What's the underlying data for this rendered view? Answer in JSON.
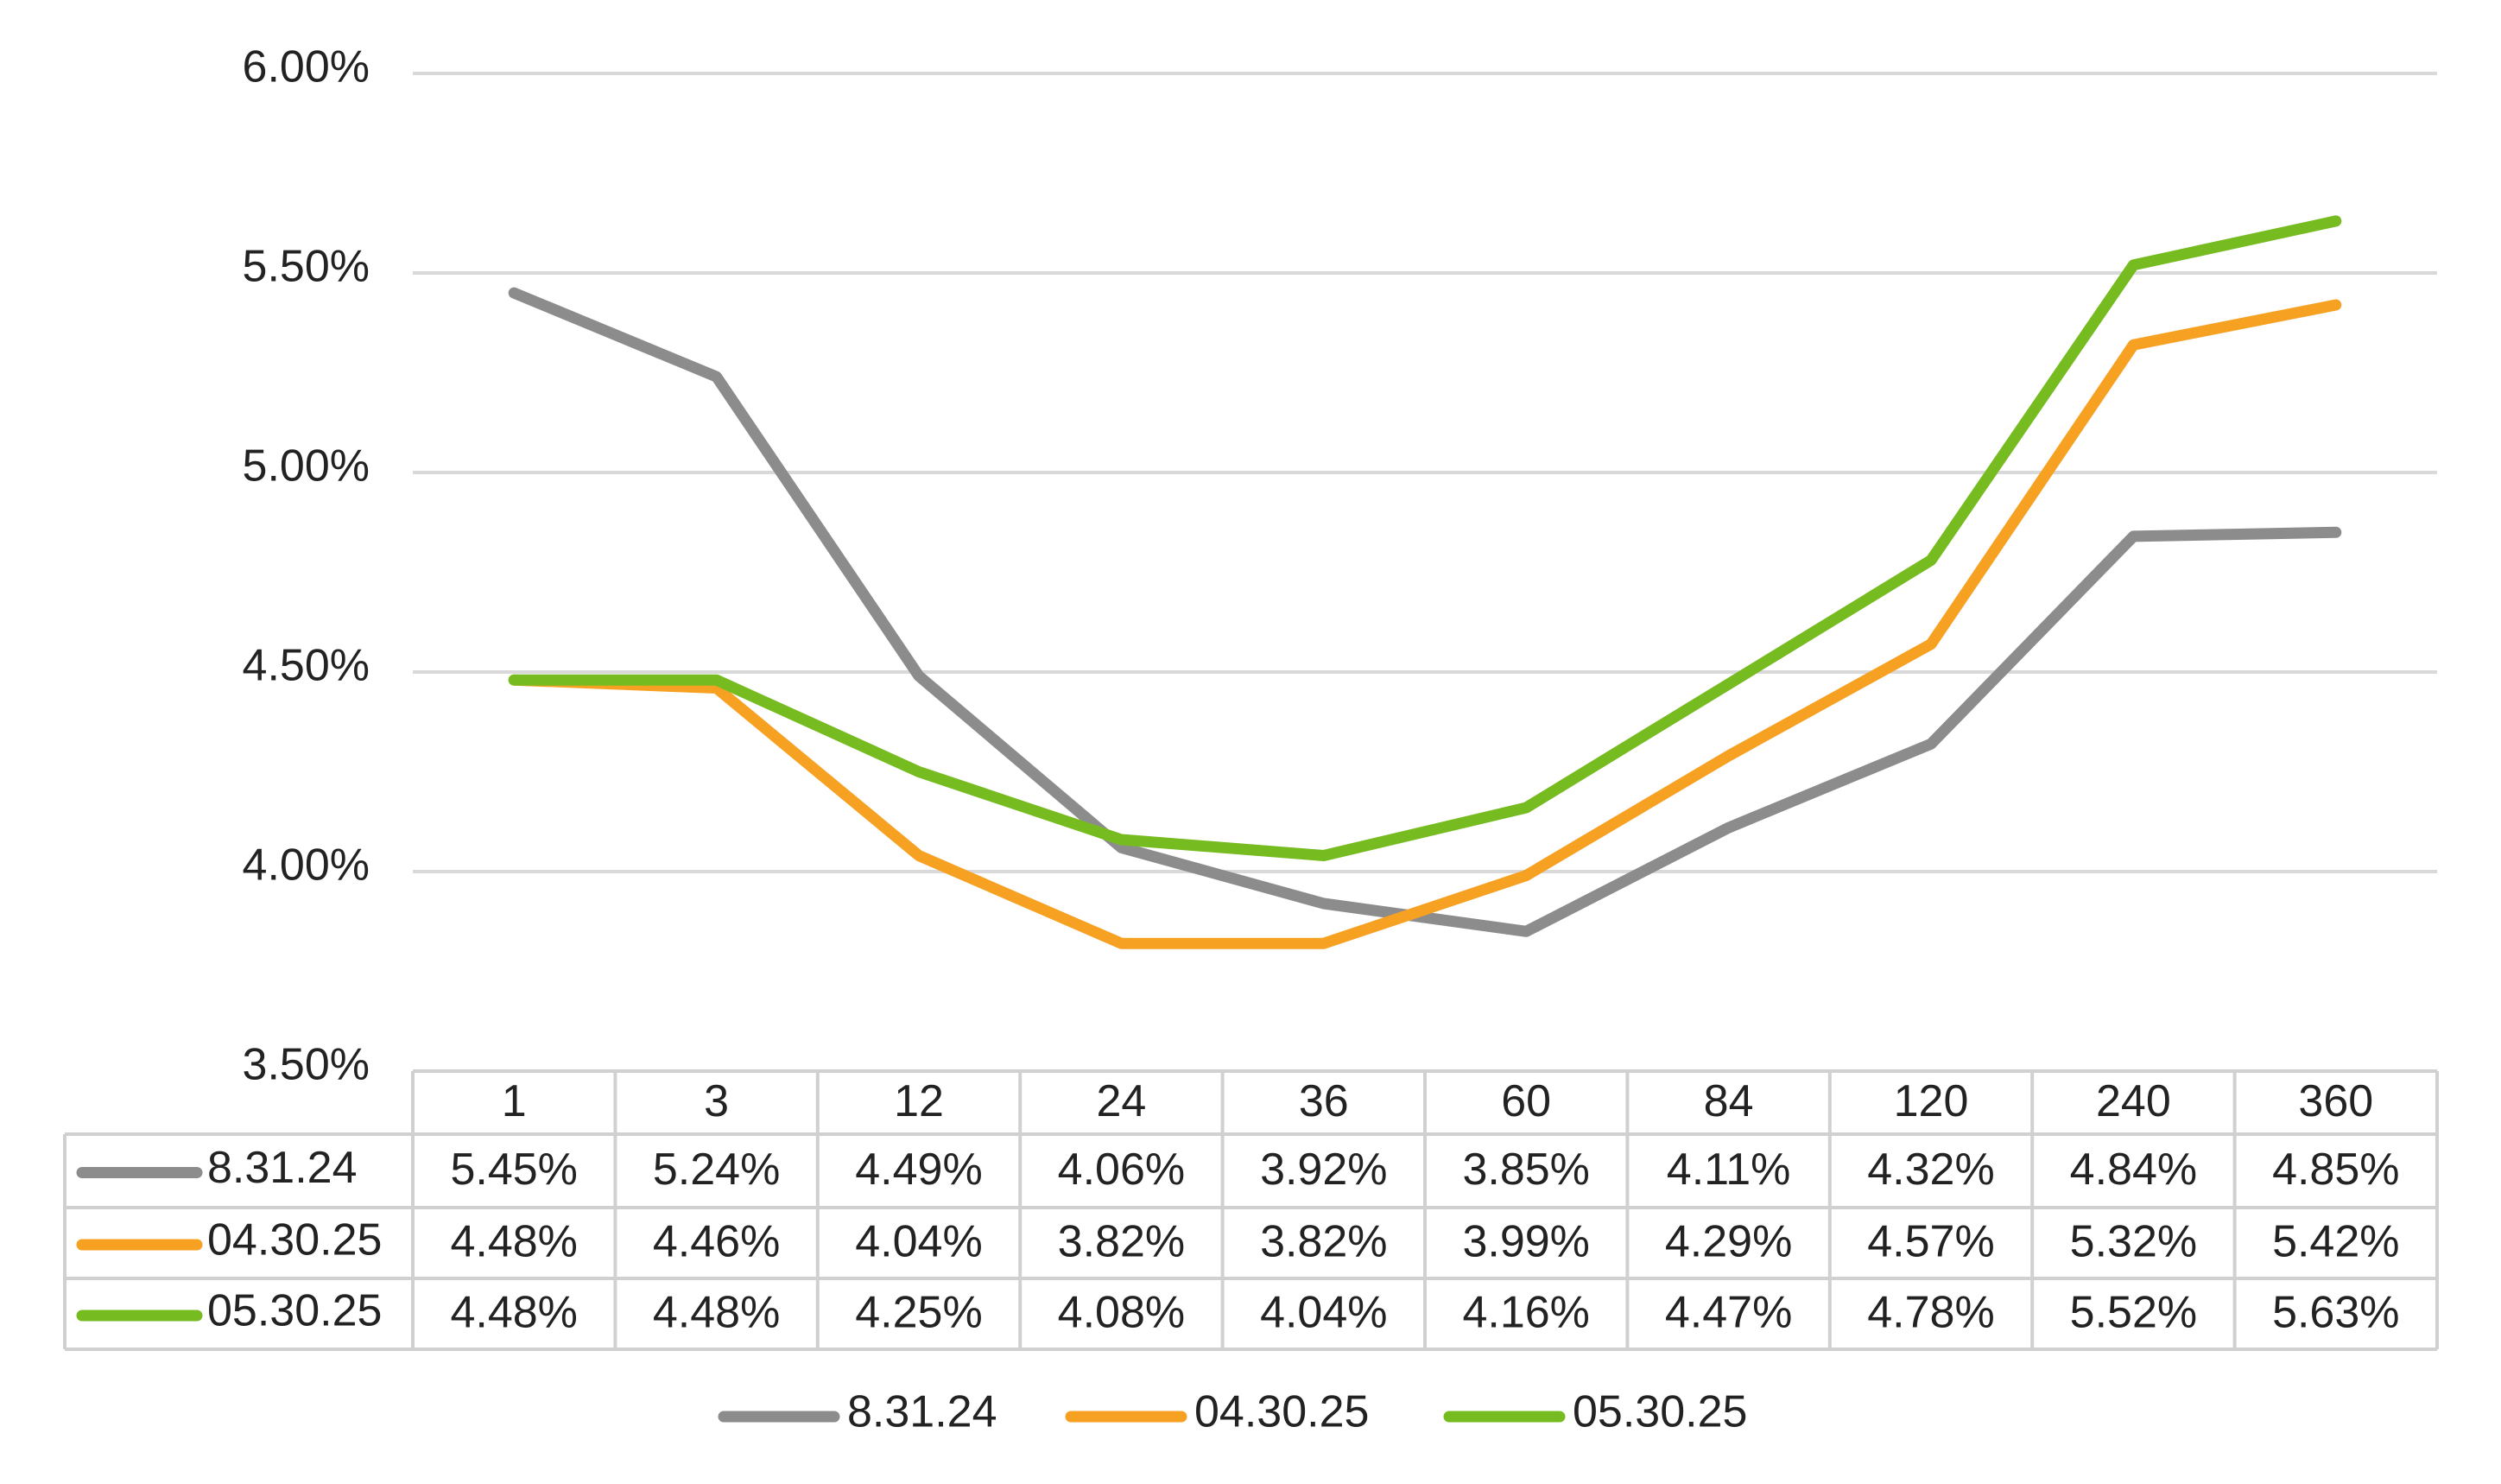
{
  "chart_data": {
    "type": "line",
    "title": "",
    "xlabel": "",
    "ylabel": "",
    "categories": [
      "1",
      "3",
      "12",
      "24",
      "36",
      "60",
      "84",
      "120",
      "240",
      "360"
    ],
    "y_ticks": [
      "3.50%",
      "4.00%",
      "4.50%",
      "5.00%",
      "5.50%",
      "6.00%"
    ],
    "ylim": [
      3.5,
      6.0
    ],
    "grid": true,
    "legend_position": "bottom",
    "data_table": true,
    "series": [
      {
        "name": "8.31.24",
        "color": "#8C8C8C",
        "values": [
          5.45,
          5.24,
          4.49,
          4.06,
          3.92,
          3.85,
          4.11,
          4.32,
          4.84,
          4.85
        ],
        "labels": [
          "5.45%",
          "5.24%",
          "4.49%",
          "4.06%",
          "3.92%",
          "3.85%",
          "4.11%",
          "4.32%",
          "4.84%",
          "4.85%"
        ]
      },
      {
        "name": "04.30.25",
        "color": "#F7A123",
        "values": [
          4.48,
          4.46,
          4.04,
          3.82,
          3.82,
          3.99,
          4.29,
          4.57,
          5.32,
          5.42
        ],
        "labels": [
          "4.48%",
          "4.46%",
          "4.04%",
          "3.82%",
          "3.82%",
          "3.99%",
          "4.29%",
          "4.57%",
          "5.32%",
          "5.42%"
        ]
      },
      {
        "name": "05.30.25",
        "color": "#76BC21",
        "values": [
          4.48,
          4.48,
          4.25,
          4.08,
          4.04,
          4.16,
          4.47,
          4.78,
          5.52,
          5.63
        ],
        "labels": [
          "4.48%",
          "4.48%",
          "4.25%",
          "4.08%",
          "4.04%",
          "4.16%",
          "4.47%",
          "4.78%",
          "5.52%",
          "5.63%"
        ]
      }
    ]
  }
}
